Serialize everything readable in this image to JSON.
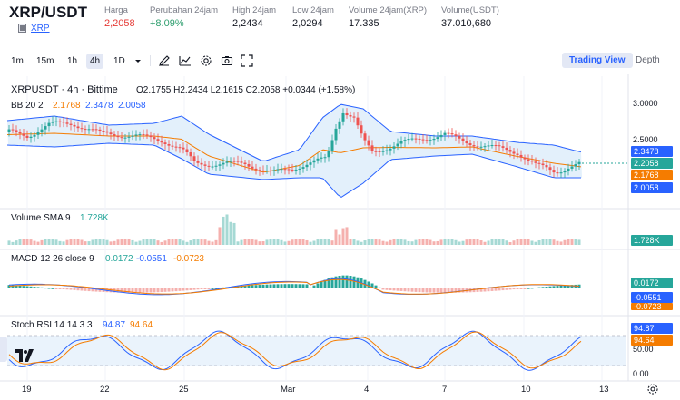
{
  "header": {
    "pair": "XRP/USDT",
    "asset": "XRP",
    "stats": [
      {
        "label": "Harga",
        "value": "2,2058",
        "color": "#e53935"
      },
      {
        "label": "Perubahan 24jam",
        "value": "+8.09%",
        "color": "#2e9e6e"
      },
      {
        "label": "High 24jam",
        "value": "2,2434",
        "color": "#131722"
      },
      {
        "label": "Low 24jam",
        "value": "2,0294",
        "color": "#131722"
      },
      {
        "label": "Volume 24jam(XRP)",
        "value": "17.335",
        "color": "#131722"
      },
      {
        "label": "Volume(USDT)",
        "value": "37.010,680",
        "color": "#131722"
      }
    ]
  },
  "toolbar": {
    "timeframes": [
      "1m",
      "15m",
      "1h",
      "4h",
      "1D"
    ],
    "active_timeframe": "4h",
    "icons": [
      "dropdown-icon",
      "draw-icon",
      "indicator-icon",
      "settings-icon",
      "screenshot-icon",
      "fullscreen-icon"
    ],
    "tabs": [
      "Trading View",
      "Depth"
    ],
    "active_tab": "Trading View"
  },
  "main_legend": {
    "symbol": "XRPUSDT · 4h · Bittime",
    "ohlc": "O2.1755 H2.2434 L2.1615 C2.2058 +0.0344 (+1.58%)",
    "bb_label": "BB 20 2",
    "bb_mid": "2.1768",
    "bb_upper": "2.3478",
    "bb_lower": "2.0058"
  },
  "price_axis": {
    "ticks": [
      "3.0000",
      "2.5000"
    ],
    "labels": [
      {
        "text": "2.3478",
        "color": "#2962ff"
      },
      {
        "text": "2.2058",
        "color": "#26a69a"
      },
      {
        "text": "2.1768",
        "color": "#f57c00"
      },
      {
        "text": "2.0058",
        "color": "#2962ff"
      }
    ]
  },
  "volume_legend": {
    "label": "Volume SMA 9",
    "value": "1.728K",
    "axis_label": "1.728K"
  },
  "macd_legend": {
    "label": "MACD 12 26 close 9",
    "v1": "0.0172",
    "v2": "-0.0551",
    "v3": "-0.0723",
    "axis_labels": [
      "0.0172",
      "-0.0551",
      "-0.0723"
    ]
  },
  "stoch_legend": {
    "label": "Stoch RSI 14 14 3 3",
    "k": "94.87",
    "d": "94.64",
    "axis_labels": [
      "94.87",
      "94.64"
    ],
    "ticks": [
      "50.00",
      "0.00"
    ]
  },
  "time_axis": [
    "19",
    "22",
    "25",
    "Mar",
    "4",
    "7",
    "10",
    "13"
  ],
  "colors": {
    "up": "#26a69a",
    "down": "#ef5350",
    "bb": "#2962ff",
    "ma": "#f57c00",
    "accent": "#2962ff"
  }
}
